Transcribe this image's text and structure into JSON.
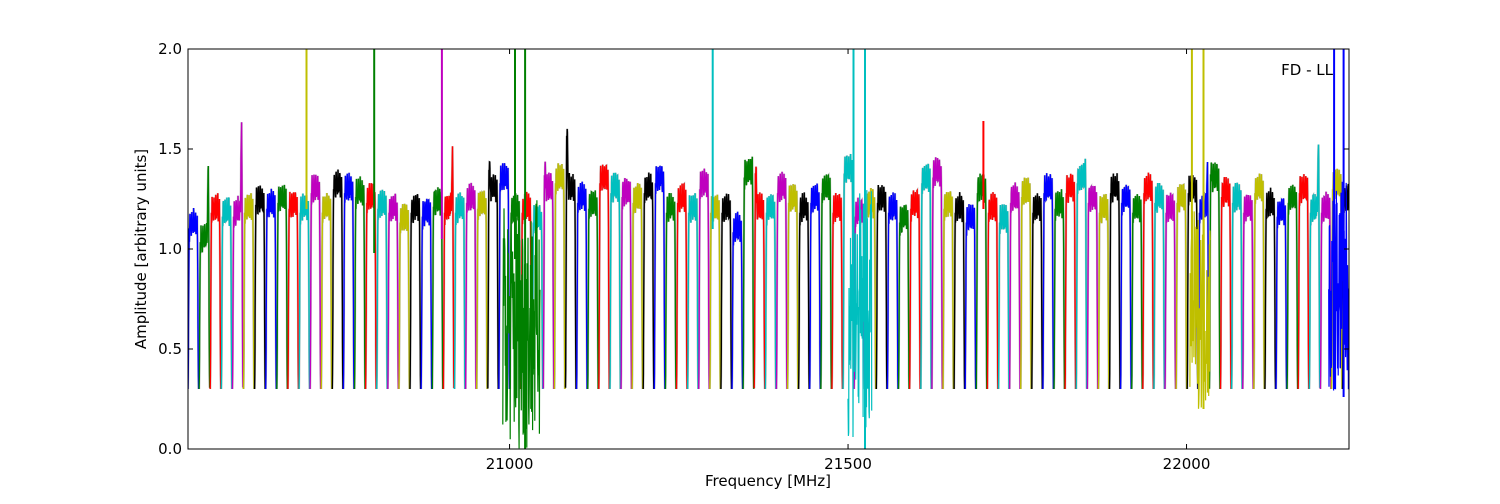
{
  "chart_data": {
    "type": "line",
    "title": "",
    "annotation": "FD - LL",
    "xlabel": "Frequency [MHz]",
    "ylabel": "Amplitude [arbitrary units]",
    "xlim": [
      20525,
      22240
    ],
    "ylim": [
      0.0,
      2.0
    ],
    "x_ticks": [
      21000,
      21500,
      22000
    ],
    "x_tick_labels": [
      "21000",
      "21500",
      "22000"
    ],
    "y_ticks": [
      0.0,
      0.5,
      1.0,
      1.5,
      2.0
    ],
    "y_tick_labels": [
      "0.0",
      "0.5",
      "1.0",
      "1.5",
      "2.0"
    ],
    "grid": false,
    "legend": "none",
    "color_cycle": [
      "#0000ff",
      "#008000",
      "#ff0000",
      "#00bfbf",
      "#bf00bf",
      "#bfbf00",
      "#000000"
    ],
    "band_width_mhz": 15.6,
    "band_spacing_mhz": 16.4,
    "band_start_mhz": 20525,
    "band_plateau_levels": [
      1.12,
      1.05,
      1.2,
      1.18,
      1.18,
      1.2,
      1.24,
      1.22,
      1.25,
      1.22,
      1.2,
      1.3,
      1.2,
      1.32,
      1.3,
      1.28,
      1.25,
      1.22,
      1.2,
      1.15,
      1.2,
      1.18,
      1.23,
      1.2,
      1.2,
      1.25,
      1.22,
      1.3,
      1.35,
      1.2,
      1.2,
      1.15,
      1.3,
      1.35,
      1.3,
      1.25,
      1.22,
      1.35,
      1.3,
      1.28,
      1.25,
      1.3,
      1.35,
      1.2,
      1.25,
      1.2,
      1.32,
      1.2,
      1.2,
      1.1,
      1.38,
      1.2,
      1.2,
      1.3,
      1.25,
      1.2,
      1.25,
      1.3,
      1.2,
      1.4,
      1.18,
      1.22,
      1.25,
      1.2,
      1.15,
      1.22,
      1.35,
      1.38,
      1.22,
      1.2,
      1.15,
      1.3,
      1.2,
      1.15,
      1.25,
      1.28,
      1.2,
      1.3,
      1.22,
      1.3,
      1.35,
      1.25,
      1.2,
      1.3,
      1.25,
      1.2,
      1.3,
      1.25,
      1.2,
      1.25,
      1.3,
      1.2,
      1.35,
      1.28,
      1.25,
      1.2,
      1.3,
      1.22,
      1.18,
      1.25,
      1.3,
      1.2,
      1.2,
      1.32,
      1.25
    ],
    "edge_peaks": [
      {
        "x": 20600,
        "y": 1.58
      },
      {
        "x": 20555,
        "y": 1.38
      },
      {
        "x": 21090,
        "y": 1.62
      },
      {
        "x": 21052,
        "y": 1.4
      },
      {
        "x": 20975,
        "y": 1.43
      },
      {
        "x": 20915,
        "y": 1.46
      },
      {
        "x": 21360,
        "y": 1.42
      },
      {
        "x": 21850,
        "y": 1.41
      },
      {
        "x": 22035,
        "y": 1.4
      },
      {
        "x": 22195,
        "y": 1.49
      }
    ],
    "spikes": [
      {
        "x": 20700,
        "y_low": 1.2,
        "y_high": 2.0,
        "color": "#bfbf00"
      },
      {
        "x": 20800,
        "y_low": 0.98,
        "y_high": 2.0,
        "color": "#008000"
      },
      {
        "x": 20900,
        "y_low": 1.05,
        "y_high": 2.0,
        "color": "#bf00bf"
      },
      {
        "x": 21008,
        "y_low": 0.95,
        "y_high": 2.0,
        "color": "#008000"
      },
      {
        "x": 21023,
        "y_low": 0.0,
        "y_high": 2.0,
        "color": "#008000"
      },
      {
        "x": 21300,
        "y_low": 1.1,
        "y_high": 2.0,
        "color": "#00bfbf"
      },
      {
        "x": 21508,
        "y_low": 0.4,
        "y_high": 2.0,
        "color": "#00bfbf"
      },
      {
        "x": 21525,
        "y_low": 0.0,
        "y_high": 2.0,
        "color": "#00bfbf"
      },
      {
        "x": 21700,
        "y_low": 1.2,
        "y_high": 1.64,
        "color": "#ff0000"
      },
      {
        "x": 22008,
        "y_low": 0.6,
        "y_high": 2.0,
        "color": "#bfbf00"
      },
      {
        "x": 22025,
        "y_low": 0.2,
        "y_high": 2.0,
        "color": "#bfbf00"
      },
      {
        "x": 22218,
        "y_low": 0.3,
        "y_high": 2.0,
        "color": "#0000ff"
      },
      {
        "x": 22232,
        "y_low": 0.26,
        "y_high": 2.0,
        "color": "#0000ff"
      }
    ],
    "noisy_regions": [
      {
        "x_start": 20990,
        "x_end": 21045,
        "y_min": 0.0,
        "y_max": 1.25,
        "color": "#008000"
      },
      {
        "x_start": 21500,
        "x_end": 21535,
        "y_min": 0.05,
        "y_max": 1.3,
        "color": "#00bfbf"
      },
      {
        "x_start": 22005,
        "x_end": 22035,
        "y_min": 0.2,
        "y_max": 1.2,
        "color": "#bfbf00"
      },
      {
        "x_start": 22210,
        "x_end": 22240,
        "y_min": 0.26,
        "y_max": 1.35,
        "color": "#0000ff"
      }
    ]
  }
}
